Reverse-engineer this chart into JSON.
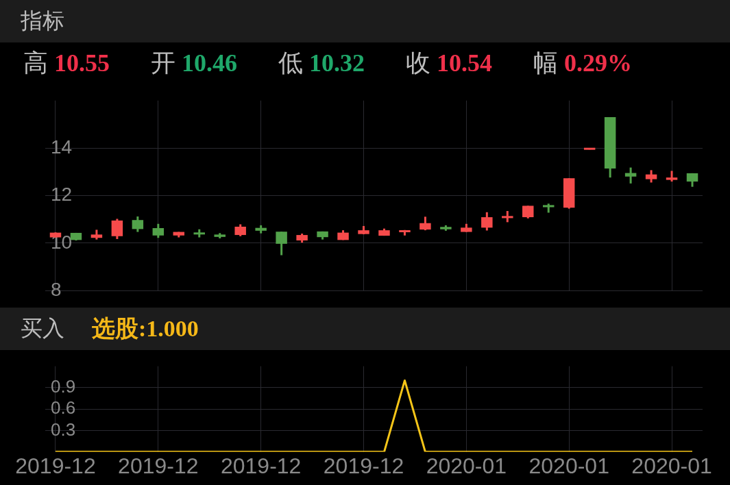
{
  "chart_data": [
    {
      "type": "candlestick",
      "title": "指标",
      "annotations": [
        "高 10.55",
        "开 10.46",
        "低 10.32",
        "收 10.54",
        "幅 0.29%"
      ],
      "categories": [
        "2019-12",
        null,
        null,
        null,
        null,
        "2019-12",
        null,
        null,
        null,
        null,
        "2019-12",
        null,
        null,
        null,
        null,
        "2019-12",
        null,
        null,
        null,
        null,
        "2020-01",
        null,
        null,
        null,
        null,
        "2020-01",
        null,
        null,
        null,
        null,
        "2020-01",
        null
      ],
      "ohlc": [
        [
          10.24,
          10.45,
          10.23,
          10.44
        ],
        [
          10.43,
          10.43,
          10.11,
          10.13
        ],
        [
          10.22,
          10.56,
          10.15,
          10.36
        ],
        [
          10.29,
          11.02,
          10.17,
          10.95
        ],
        [
          10.97,
          11.12,
          10.47,
          10.59
        ],
        [
          10.63,
          10.81,
          10.22,
          10.32
        ],
        [
          10.32,
          10.47,
          10.24,
          10.47
        ],
        [
          10.43,
          10.58,
          10.24,
          10.38
        ],
        [
          10.36,
          10.42,
          10.2,
          10.26
        ],
        [
          10.34,
          10.79,
          10.29,
          10.69
        ],
        [
          10.64,
          10.75,
          10.41,
          10.52
        ],
        [
          10.48,
          10.48,
          9.49,
          9.97
        ],
        [
          10.11,
          10.4,
          10.02,
          10.34
        ],
        [
          10.49,
          10.49,
          10.15,
          10.25
        ],
        [
          10.13,
          10.54,
          10.13,
          10.44
        ],
        [
          10.38,
          10.72,
          10.37,
          10.54
        ],
        [
          10.31,
          10.61,
          10.31,
          10.54
        ],
        [
          10.46,
          10.55,
          10.32,
          10.54
        ],
        [
          10.57,
          11.11,
          10.54,
          10.84
        ],
        [
          10.68,
          10.75,
          10.52,
          10.58
        ],
        [
          10.47,
          10.81,
          10.47,
          10.65
        ],
        [
          10.65,
          11.3,
          10.53,
          11.09
        ],
        [
          11.05,
          11.35,
          10.88,
          11.14
        ],
        [
          11.09,
          11.57,
          11.04,
          11.57
        ],
        [
          11.6,
          11.66,
          11.28,
          11.51
        ],
        [
          11.49,
          12.73,
          11.45,
          12.73
        ],
        [
          13.94,
          14.0,
          13.94,
          14.0
        ],
        [
          15.3,
          15.3,
          12.76,
          13.14
        ],
        [
          12.95,
          13.18,
          12.51,
          12.8
        ],
        [
          12.69,
          13.07,
          12.55,
          12.89
        ],
        [
          12.66,
          13.04,
          12.59,
          12.76
        ],
        [
          12.94,
          12.94,
          12.37,
          12.59
        ]
      ],
      "colors": [
        "#f64b4b",
        "#52a24a",
        "#f64b4b",
        "#f64b4b",
        "#52a24a",
        "#52a24a",
        "#f64b4b",
        "#52a24a",
        "#52a24a",
        "#f64b4b",
        "#52a24a",
        "#52a24a",
        "#f64b4b",
        "#52a24a",
        "#f64b4b",
        "#f64b4b",
        "#f64b4b",
        "#f64b4b",
        "#f64b4b",
        "#52a24a",
        "#f64b4b",
        "#f64b4b",
        "#f64b4b",
        "#f64b4b",
        "#52a24a",
        "#f64b4b",
        "#f64b4b",
        "#52a24a",
        "#52a24a",
        "#f64b4b",
        "#f64b4b",
        "#52a24a"
      ],
      "ylim": [
        8,
        16
      ],
      "yticks": [
        8,
        10,
        12,
        14
      ],
      "grid": true,
      "tick_labels": "y"
    },
    {
      "type": "line",
      "title": "买入",
      "annotations": [
        "选股:1.000"
      ],
      "categories": [
        "2019-12",
        null,
        null,
        null,
        null,
        "2019-12",
        null,
        null,
        null,
        null,
        "2019-12",
        null,
        null,
        null,
        null,
        "2019-12",
        null,
        null,
        null,
        null,
        "2020-01",
        null,
        null,
        null,
        null,
        "2020-01",
        null,
        null,
        null,
        null,
        "2020-01",
        null
      ],
      "series": [
        {
          "color": "#f5c518",
          "values": [
            0,
            0,
            0,
            0,
            0,
            0,
            0,
            0,
            0,
            0,
            0,
            0,
            0,
            0,
            0,
            0,
            0,
            1,
            0,
            0,
            0,
            0,
            0,
            0,
            0,
            0,
            0,
            0,
            0,
            0,
            0,
            0
          ]
        }
      ],
      "ylim": [
        0,
        1.2
      ],
      "yticks": [
        0.3,
        0.6,
        0.9
      ],
      "grid": true,
      "marker": "none",
      "line_style": "solid"
    }
  ]
}
